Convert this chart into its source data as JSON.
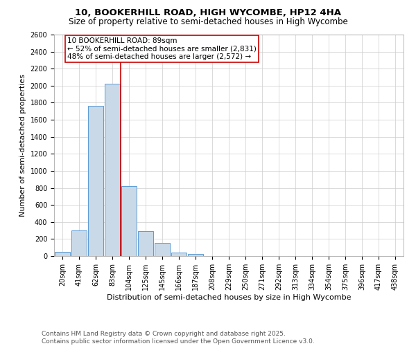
{
  "title1": "10, BOOKERHILL ROAD, HIGH WYCOMBE, HP12 4HA",
  "title2": "Size of property relative to semi-detached houses in High Wycombe",
  "xlabel": "Distribution of semi-detached houses by size in High Wycombe",
  "ylabel": "Number of semi-detached properties",
  "categories": [
    "20sqm",
    "41sqm",
    "62sqm",
    "83sqm",
    "104sqm",
    "125sqm",
    "145sqm",
    "166sqm",
    "187sqm",
    "208sqm",
    "229sqm",
    "250sqm",
    "271sqm",
    "292sqm",
    "313sqm",
    "334sqm",
    "354sqm",
    "375sqm",
    "396sqm",
    "417sqm",
    "438sqm"
  ],
  "values": [
    50,
    300,
    1760,
    2020,
    820,
    290,
    155,
    38,
    25,
    0,
    0,
    0,
    0,
    0,
    0,
    0,
    0,
    0,
    0,
    0,
    0
  ],
  "bar_color": "#c9d9e8",
  "bar_edge_color": "#5b9bd5",
  "vline_idx": 3.5,
  "vline_color": "#cc0000",
  "property_label": "10 BOOKERHILL ROAD: 89sqm",
  "annotation_line1": "← 52% of semi-detached houses are smaller (2,831)",
  "annotation_line2": "48% of semi-detached houses are larger (2,572) →",
  "annotation_box_color": "#cc0000",
  "annotation_bg": "#ffffff",
  "ylim": [
    0,
    2600
  ],
  "yticks": [
    0,
    200,
    400,
    600,
    800,
    1000,
    1200,
    1400,
    1600,
    1800,
    2000,
    2200,
    2400,
    2600
  ],
  "grid_color": "#cccccc",
  "background_color": "#ffffff",
  "footnote1": "Contains HM Land Registry data © Crown copyright and database right 2025.",
  "footnote2": "Contains public sector information licensed under the Open Government Licence v3.0.",
  "title_fontsize": 9.5,
  "subtitle_fontsize": 8.5,
  "axis_label_fontsize": 8,
  "tick_fontsize": 7,
  "annotation_fontsize": 7.5,
  "footnote_fontsize": 6.5
}
